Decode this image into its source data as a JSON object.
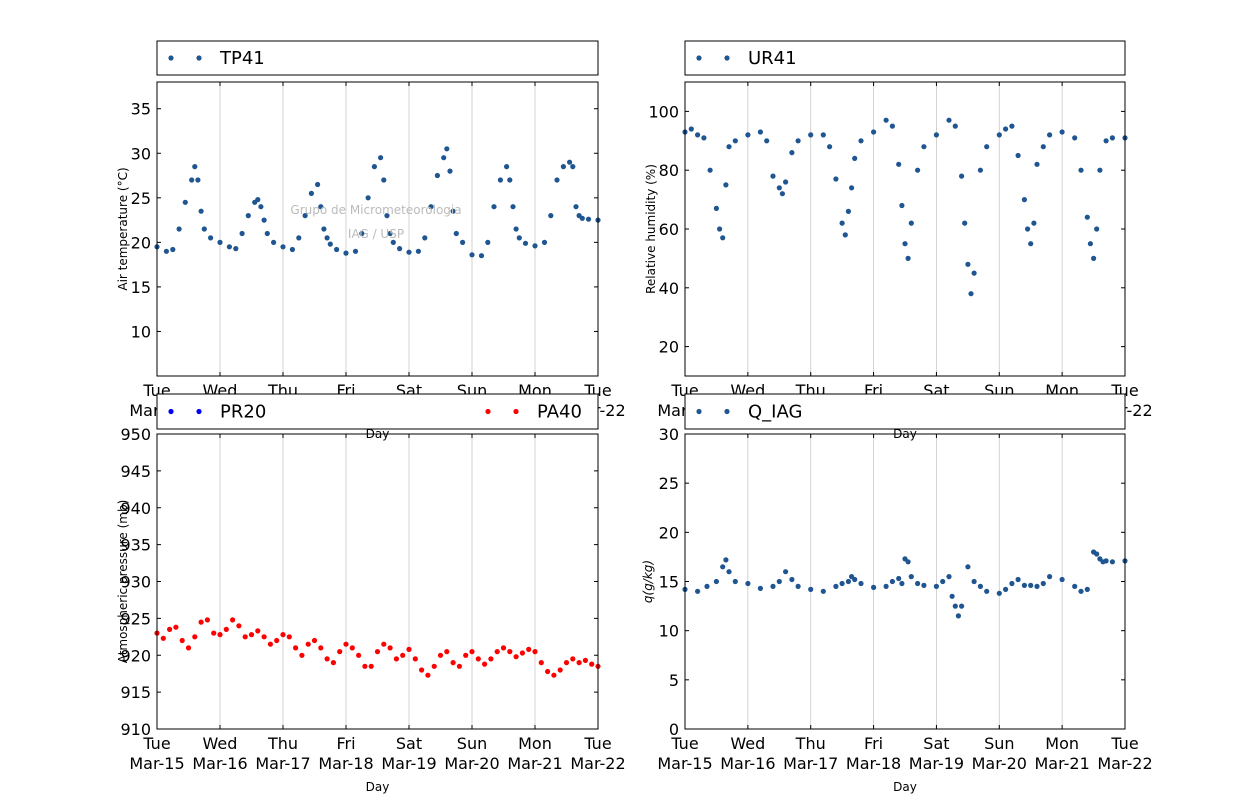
{
  "figure": {
    "watermark": [
      "Grupo de Micrometeorologia",
      "IAG / USP"
    ]
  },
  "chart_data": [
    {
      "id": "temp",
      "type": "scatter",
      "ylabel": "Air temperature (°C)",
      "xlabel": "Day",
      "ylim": [
        5,
        38
      ],
      "yticks": [
        10,
        15,
        20,
        25,
        30,
        35
      ],
      "xlim": [
        0,
        7
      ],
      "xticks_top": [
        "Tue",
        "Wed",
        "Thu",
        "Fri",
        "Sat",
        "Sun",
        "Mon",
        "Tue"
      ],
      "xticks_bottom": [
        "Mar-15",
        "Mar-16",
        "Mar-17",
        "Mar-18",
        "Mar-19",
        "Mar-20",
        "Mar-21",
        "Mar-22"
      ],
      "grid": "vertical",
      "legend": "top, above plot",
      "series": [
        {
          "name": "TP41",
          "color": "#1f5590",
          "x": [
            0.0,
            0.15,
            0.25,
            0.35,
            0.45,
            0.55,
            0.6,
            0.65,
            0.7,
            0.75,
            0.85,
            1.0,
            1.15,
            1.25,
            1.35,
            1.45,
            1.55,
            1.6,
            1.65,
            1.7,
            1.75,
            1.85,
            2.0,
            2.15,
            2.25,
            2.35,
            2.45,
            2.55,
            2.6,
            2.65,
            2.7,
            2.75,
            2.85,
            3.0,
            3.15,
            3.25,
            3.35,
            3.45,
            3.55,
            3.6,
            3.65,
            3.7,
            3.75,
            3.85,
            4.0,
            4.15,
            4.25,
            4.35,
            4.45,
            4.55,
            4.6,
            4.65,
            4.7,
            4.75,
            4.85,
            5.0,
            5.15,
            5.25,
            5.35,
            5.45,
            5.55,
            5.6,
            5.65,
            5.7,
            5.75,
            5.85,
            6.0,
            6.15,
            6.25,
            6.35,
            6.45,
            6.55,
            6.6,
            6.65,
            6.7,
            6.75,
            6.85,
            7.0
          ],
          "y": [
            19.5,
            19.0,
            19.2,
            21.5,
            24.5,
            27.0,
            28.5,
            27.0,
            23.5,
            21.5,
            20.5,
            20.0,
            19.5,
            19.3,
            21.0,
            23.0,
            24.5,
            24.8,
            24.0,
            22.5,
            21.0,
            20.0,
            19.5,
            19.2,
            20.5,
            23.0,
            25.5,
            26.5,
            24.0,
            21.5,
            20.5,
            19.8,
            19.2,
            18.8,
            19.0,
            21.0,
            25.0,
            28.5,
            29.5,
            27.0,
            23.0,
            21.0,
            20.0,
            19.3,
            18.9,
            19.0,
            20.5,
            24.0,
            27.5,
            29.5,
            30.5,
            28.0,
            23.5,
            21.0,
            20.0,
            18.6,
            18.5,
            20.0,
            24.0,
            27.0,
            28.5,
            27.0,
            24.0,
            21.5,
            20.5,
            19.9,
            19.6,
            20.0,
            23.0,
            27.0,
            28.5,
            29.0,
            28.5,
            24.0,
            23.0,
            22.7,
            22.6,
            22.5
          ]
        }
      ]
    },
    {
      "id": "rh",
      "type": "scatter",
      "ylabel": "Relative humidity (%)",
      "xlabel": "Day",
      "ylim": [
        10,
        110
      ],
      "yticks": [
        20,
        40,
        60,
        80,
        100
      ],
      "xlim": [
        0,
        7
      ],
      "xticks_top": [
        "Tue",
        "Wed",
        "Thu",
        "Fri",
        "Sat",
        "Sun",
        "Mon",
        "Tue"
      ],
      "xticks_bottom": [
        "Mar-15",
        "Mar-16",
        "Mar-17",
        "Mar-18",
        "Mar-19",
        "Mar-20",
        "Mar-21",
        "Mar-22"
      ],
      "grid": "vertical",
      "legend": "top, above plot",
      "series": [
        {
          "name": "UR41",
          "color": "#1f5590",
          "x": [
            0.0,
            0.1,
            0.2,
            0.3,
            0.4,
            0.5,
            0.55,
            0.6,
            0.65,
            0.7,
            0.8,
            1.0,
            1.2,
            1.3,
            1.4,
            1.5,
            1.55,
            1.6,
            1.7,
            1.8,
            2.0,
            2.2,
            2.3,
            2.4,
            2.5,
            2.55,
            2.6,
            2.65,
            2.7,
            2.8,
            3.0,
            3.2,
            3.3,
            3.4,
            3.45,
            3.5,
            3.55,
            3.6,
            3.7,
            3.8,
            4.0,
            4.2,
            4.3,
            4.4,
            4.45,
            4.5,
            4.55,
            4.6,
            4.7,
            4.8,
            5.0,
            5.1,
            5.2,
            5.3,
            5.4,
            5.45,
            5.5,
            5.55,
            5.6,
            5.7,
            5.8,
            6.0,
            6.2,
            6.3,
            6.4,
            6.45,
            6.5,
            6.55,
            6.6,
            6.7,
            6.8,
            7.0
          ],
          "y": [
            93,
            94,
            92,
            91,
            80,
            67,
            60,
            57,
            75,
            88,
            90,
            92,
            93,
            90,
            78,
            74,
            72,
            76,
            86,
            90,
            92,
            92,
            88,
            77,
            62,
            58,
            66,
            74,
            84,
            90,
            93,
            97,
            95,
            82,
            68,
            55,
            50,
            62,
            80,
            88,
            92,
            97,
            95,
            78,
            62,
            48,
            38,
            45,
            80,
            88,
            92,
            94,
            95,
            85,
            70,
            60,
            55,
            62,
            82,
            88,
            92,
            93,
            91,
            80,
            64,
            55,
            50,
            60,
            80,
            90,
            91,
            91
          ]
        }
      ]
    },
    {
      "id": "pres",
      "type": "scatter",
      "ylabel": "Atmospheric pressure (mb)",
      "xlabel": "Day",
      "ylim": [
        910,
        950
      ],
      "yticks": [
        910,
        915,
        920,
        925,
        930,
        935,
        940,
        945,
        950
      ],
      "xlim": [
        0,
        7
      ],
      "xticks_top": [
        "Tue",
        "Wed",
        "Thu",
        "Fri",
        "Sat",
        "Sun",
        "Mon",
        "Tue"
      ],
      "xticks_bottom": [
        "Mar-15",
        "Mar-16",
        "Mar-17",
        "Mar-18",
        "Mar-19",
        "Mar-20",
        "Mar-21",
        "Mar-22"
      ],
      "grid": "vertical",
      "legend": "top, above plot",
      "series": [
        {
          "name": "PR20",
          "color": "#0000ff",
          "x": [],
          "y": []
        },
        {
          "name": "PA40",
          "color": "#ff0000",
          "x": [
            0.0,
            0.1,
            0.2,
            0.3,
            0.4,
            0.5,
            0.6,
            0.7,
            0.8,
            0.9,
            1.0,
            1.1,
            1.2,
            1.3,
            1.4,
            1.5,
            1.6,
            1.7,
            1.8,
            1.9,
            2.0,
            2.1,
            2.2,
            2.3,
            2.4,
            2.5,
            2.6,
            2.7,
            2.8,
            2.9,
            3.0,
            3.1,
            3.2,
            3.3,
            3.4,
            3.5,
            3.6,
            3.7,
            3.8,
            3.9,
            4.0,
            4.1,
            4.2,
            4.3,
            4.4,
            4.5,
            4.6,
            4.7,
            4.8,
            4.9,
            5.0,
            5.1,
            5.2,
            5.3,
            5.4,
            5.5,
            5.6,
            5.7,
            5.8,
            5.9,
            6.0,
            6.1,
            6.2,
            6.3,
            6.4,
            6.5,
            6.6,
            6.7,
            6.8,
            6.9,
            7.0
          ],
          "y": [
            923.0,
            922.3,
            923.5,
            923.8,
            922.0,
            921.0,
            922.5,
            924.5,
            924.8,
            923.0,
            922.8,
            923.5,
            924.8,
            924.0,
            922.5,
            922.8,
            923.3,
            922.5,
            921.5,
            922.0,
            922.8,
            922.5,
            921.0,
            920.0,
            921.5,
            922.0,
            921.0,
            919.5,
            919.0,
            920.5,
            921.5,
            921.0,
            920.0,
            918.5,
            918.5,
            920.5,
            921.5,
            921.0,
            919.5,
            920.0,
            920.8,
            919.5,
            918.0,
            917.3,
            918.5,
            920.0,
            920.5,
            919.0,
            918.5,
            920.0,
            920.5,
            919.5,
            918.8,
            919.5,
            920.5,
            921.0,
            920.5,
            919.8,
            920.3,
            920.8,
            920.5,
            919.0,
            917.8,
            917.3,
            918.0,
            919.0,
            919.5,
            919.0,
            919.3,
            918.8,
            918.5
          ]
        }
      ]
    },
    {
      "id": "q",
      "type": "scatter",
      "ylabel": "q(g/kg)",
      "xlabel": "Day",
      "ylim": [
        0,
        30
      ],
      "yticks": [
        0,
        5,
        10,
        15,
        20,
        25,
        30
      ],
      "xlim": [
        0,
        7
      ],
      "xticks_top": [
        "Tue",
        "Wed",
        "Thu",
        "Fri",
        "Sat",
        "Sun",
        "Mon",
        "Tue"
      ],
      "xticks_bottom": [
        "Mar-15",
        "Mar-16",
        "Mar-17",
        "Mar-18",
        "Mar-19",
        "Mar-20",
        "Mar-21",
        "Mar-22"
      ],
      "grid": "vertical",
      "legend": "top, above plot",
      "series": [
        {
          "name": "Q_IAG",
          "color": "#1f5590",
          "x": [
            0.0,
            0.2,
            0.35,
            0.5,
            0.6,
            0.65,
            0.7,
            0.8,
            1.0,
            1.2,
            1.4,
            1.5,
            1.6,
            1.7,
            1.8,
            2.0,
            2.2,
            2.4,
            2.5,
            2.6,
            2.65,
            2.7,
            2.8,
            3.0,
            3.2,
            3.3,
            3.4,
            3.45,
            3.5,
            3.55,
            3.6,
            3.7,
            3.8,
            4.0,
            4.1,
            4.2,
            4.25,
            4.3,
            4.35,
            4.4,
            4.5,
            4.6,
            4.7,
            4.8,
            5.0,
            5.1,
            5.2,
            5.3,
            5.4,
            5.5,
            5.6,
            5.7,
            5.8,
            6.0,
            6.2,
            6.3,
            6.4,
            6.5,
            6.55,
            6.6,
            6.65,
            6.7,
            6.8,
            7.0
          ],
          "y": [
            14.2,
            14.0,
            14.5,
            15.0,
            16.5,
            17.2,
            16.0,
            15.0,
            14.8,
            14.3,
            14.5,
            15.0,
            16.0,
            15.2,
            14.5,
            14.2,
            14.0,
            14.5,
            14.8,
            15.0,
            15.5,
            15.2,
            14.8,
            14.4,
            14.5,
            15.0,
            15.3,
            14.8,
            17.3,
            17.0,
            15.5,
            14.8,
            14.6,
            14.5,
            15.0,
            15.5,
            13.5,
            12.5,
            11.5,
            12.5,
            16.5,
            15.0,
            14.5,
            14.0,
            13.8,
            14.2,
            14.8,
            15.2,
            14.6,
            14.6,
            14.5,
            14.8,
            15.5,
            15.2,
            14.5,
            14.0,
            14.2,
            18.0,
            17.8,
            17.3,
            17.0,
            17.1,
            17.0,
            17.1
          ]
        }
      ]
    }
  ]
}
